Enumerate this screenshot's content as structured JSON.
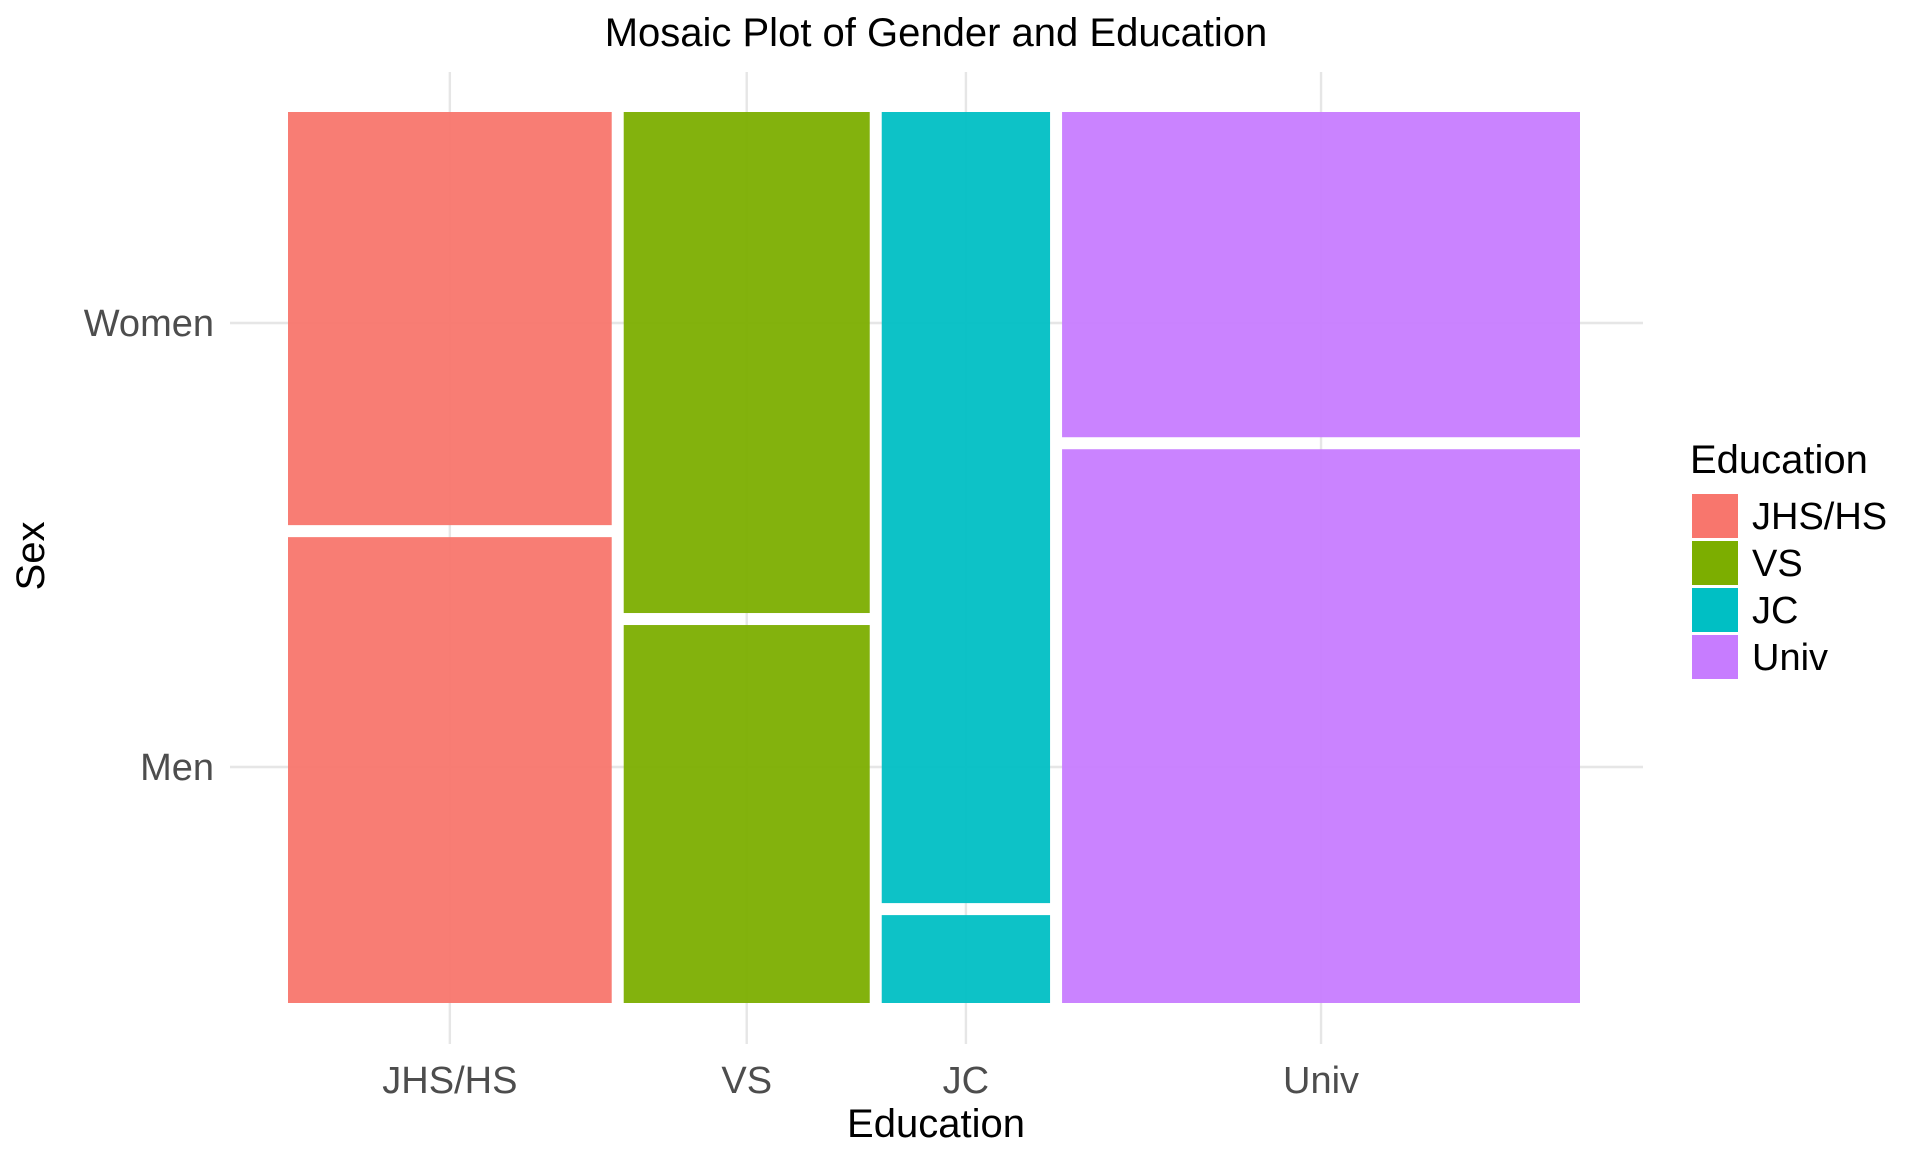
{
  "chart_data": {
    "type": "mosaic",
    "title": "Mosaic Plot of Gender and Education",
    "xlabel": "Education",
    "ylabel": "Sex",
    "categories": [
      "JHS/HS",
      "VS",
      "JC",
      "Univ"
    ],
    "column_widths": [
      0.25,
      0.19,
      0.13,
      0.4
    ],
    "y_levels": [
      "Men",
      "Women"
    ],
    "series": [
      {
        "name": "Men",
        "values": [
          0.53,
          0.43,
          0.1,
          0.63
        ]
      },
      {
        "name": "Women",
        "values": [
          0.47,
          0.57,
          0.9,
          0.37
        ]
      }
    ],
    "ylim": [
      0,
      1
    ],
    "grid": true,
    "legend": {
      "title": "Education",
      "placement": "right",
      "entries": [
        "JHS/HS",
        "VS",
        "JC",
        "Univ"
      ]
    },
    "colors": {
      "JHS/HS": "#F8766D",
      "VS": "#7CAE00",
      "JC": "#00BFC4",
      "Univ": "#C77CFF"
    }
  }
}
